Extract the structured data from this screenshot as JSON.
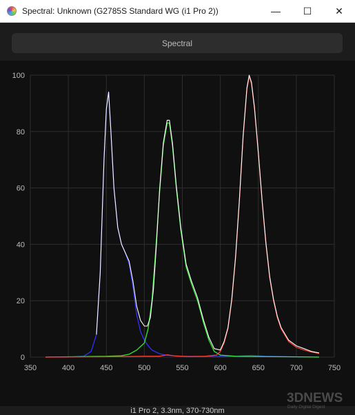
{
  "window": {
    "title": "Spectral: Unknown (G2785S Standard WG (i1 Pro 2))",
    "controls": {
      "minimize": "—",
      "maximize": "☐",
      "close": "✕"
    }
  },
  "tab": {
    "label": "Spectral"
  },
  "caption": "i1 Pro 2, 3.3nm, 370-730nm",
  "watermark": {
    "brand": "3DNEWS",
    "tagline": "Daily Digital Digest"
  },
  "colors": {
    "background": "#101010",
    "grid": "#2e2e2e",
    "axis_text": "#bdbdbd",
    "red": "#ff3b30",
    "green": "#34e834",
    "blue": "#3030ff",
    "sum": "#ffffff"
  },
  "chart_data": {
    "type": "line",
    "title": "",
    "xlabel": "",
    "ylabel": "",
    "xlim": [
      350,
      750
    ],
    "ylim": [
      0,
      100
    ],
    "x_ticks": [
      350,
      400,
      450,
      500,
      550,
      600,
      650,
      700,
      750
    ],
    "y_ticks": [
      0,
      20,
      40,
      60,
      80,
      100
    ],
    "grid": true,
    "series": [
      {
        "color": "#3030ff",
        "points": [
          [
            370,
            0
          ],
          [
            400,
            0
          ],
          [
            420,
            0.3
          ],
          [
            430,
            2
          ],
          [
            437,
            8
          ],
          [
            442,
            30
          ],
          [
            447,
            70
          ],
          [
            450,
            88
          ],
          [
            453,
            94
          ],
          [
            456,
            80
          ],
          [
            460,
            60
          ],
          [
            465,
            46
          ],
          [
            470,
            40
          ],
          [
            475,
            37
          ],
          [
            480,
            33
          ],
          [
            485,
            25
          ],
          [
            490,
            15
          ],
          [
            495,
            9
          ],
          [
            500,
            6
          ],
          [
            505,
            4
          ],
          [
            510,
            2.5
          ],
          [
            520,
            1.2
          ],
          [
            530,
            0.6
          ],
          [
            550,
            0.3
          ],
          [
            580,
            0.2
          ],
          [
            620,
            0.3
          ],
          [
            640,
            0.6
          ],
          [
            660,
            0.3
          ],
          [
            700,
            0.1
          ],
          [
            730,
            0
          ]
        ]
      },
      {
        "color": "#34e834",
        "points": [
          [
            370,
            0
          ],
          [
            450,
            0.3
          ],
          [
            470,
            0.5
          ],
          [
            480,
            1
          ],
          [
            490,
            2.5
          ],
          [
            500,
            5
          ],
          [
            505,
            10
          ],
          [
            510,
            20
          ],
          [
            515,
            38
          ],
          [
            520,
            58
          ],
          [
            525,
            75
          ],
          [
            530,
            83
          ],
          [
            533,
            83
          ],
          [
            537,
            75
          ],
          [
            542,
            60
          ],
          [
            548,
            45
          ],
          [
            555,
            32
          ],
          [
            562,
            26
          ],
          [
            570,
            20
          ],
          [
            578,
            12
          ],
          [
            585,
            6
          ],
          [
            592,
            2
          ],
          [
            600,
            0.7
          ],
          [
            620,
            0.3
          ],
          [
            650,
            0.2
          ],
          [
            700,
            0.1
          ],
          [
            730,
            0
          ]
        ]
      },
      {
        "color": "#ff3b30",
        "points": [
          [
            370,
            0
          ],
          [
            480,
            0.2
          ],
          [
            500,
            0.3
          ],
          [
            520,
            0.3
          ],
          [
            530,
            0.8
          ],
          [
            540,
            0.4
          ],
          [
            560,
            0.2
          ],
          [
            580,
            0.3
          ],
          [
            595,
            0.7
          ],
          [
            600,
            2
          ],
          [
            605,
            5
          ],
          [
            610,
            10
          ],
          [
            615,
            20
          ],
          [
            620,
            35
          ],
          [
            625,
            55
          ],
          [
            630,
            78
          ],
          [
            635,
            95
          ],
          [
            638,
            99.5
          ],
          [
            641,
            97
          ],
          [
            645,
            88
          ],
          [
            650,
            72
          ],
          [
            655,
            55
          ],
          [
            660,
            40
          ],
          [
            665,
            28
          ],
          [
            670,
            20
          ],
          [
            675,
            14
          ],
          [
            680,
            10
          ],
          [
            690,
            5.5
          ],
          [
            700,
            3.5
          ],
          [
            710,
            2.5
          ],
          [
            720,
            1.8
          ],
          [
            730,
            1.3
          ]
        ]
      },
      {
        "color": "#ffffff",
        "points": [
          [
            437,
            8
          ],
          [
            442,
            30
          ],
          [
            447,
            70
          ],
          [
            450,
            88
          ],
          [
            453,
            94
          ],
          [
            456,
            80
          ],
          [
            460,
            60
          ],
          [
            465,
            46
          ],
          [
            470,
            40
          ],
          [
            475,
            37
          ],
          [
            480,
            34
          ],
          [
            485,
            27
          ],
          [
            490,
            18
          ],
          [
            495,
            13
          ],
          [
            500,
            11
          ],
          [
            504,
            11
          ],
          [
            508,
            14
          ],
          [
            512,
            24
          ],
          [
            516,
            40
          ],
          [
            520,
            59
          ],
          [
            525,
            76
          ],
          [
            530,
            84
          ],
          [
            533,
            84
          ],
          [
            537,
            76
          ],
          [
            542,
            61
          ],
          [
            548,
            46
          ],
          [
            555,
            33
          ],
          [
            562,
            27
          ],
          [
            570,
            21
          ],
          [
            578,
            13
          ],
          [
            585,
            7
          ],
          [
            592,
            3
          ],
          [
            600,
            2.5
          ],
          [
            605,
            5.5
          ],
          [
            610,
            10.5
          ],
          [
            615,
            20.5
          ],
          [
            620,
            35.5
          ],
          [
            625,
            55.5
          ],
          [
            630,
            78.5
          ],
          [
            635,
            95.5
          ],
          [
            638,
            100
          ],
          [
            641,
            97.5
          ],
          [
            645,
            88.5
          ],
          [
            650,
            72.5
          ],
          [
            655,
            55.5
          ],
          [
            660,
            40.5
          ],
          [
            665,
            28.5
          ],
          [
            670,
            20.5
          ],
          [
            675,
            14.5
          ],
          [
            680,
            10.5
          ],
          [
            690,
            6
          ],
          [
            700,
            4
          ],
          [
            710,
            3
          ],
          [
            720,
            2
          ],
          [
            730,
            1.5
          ]
        ]
      }
    ]
  }
}
